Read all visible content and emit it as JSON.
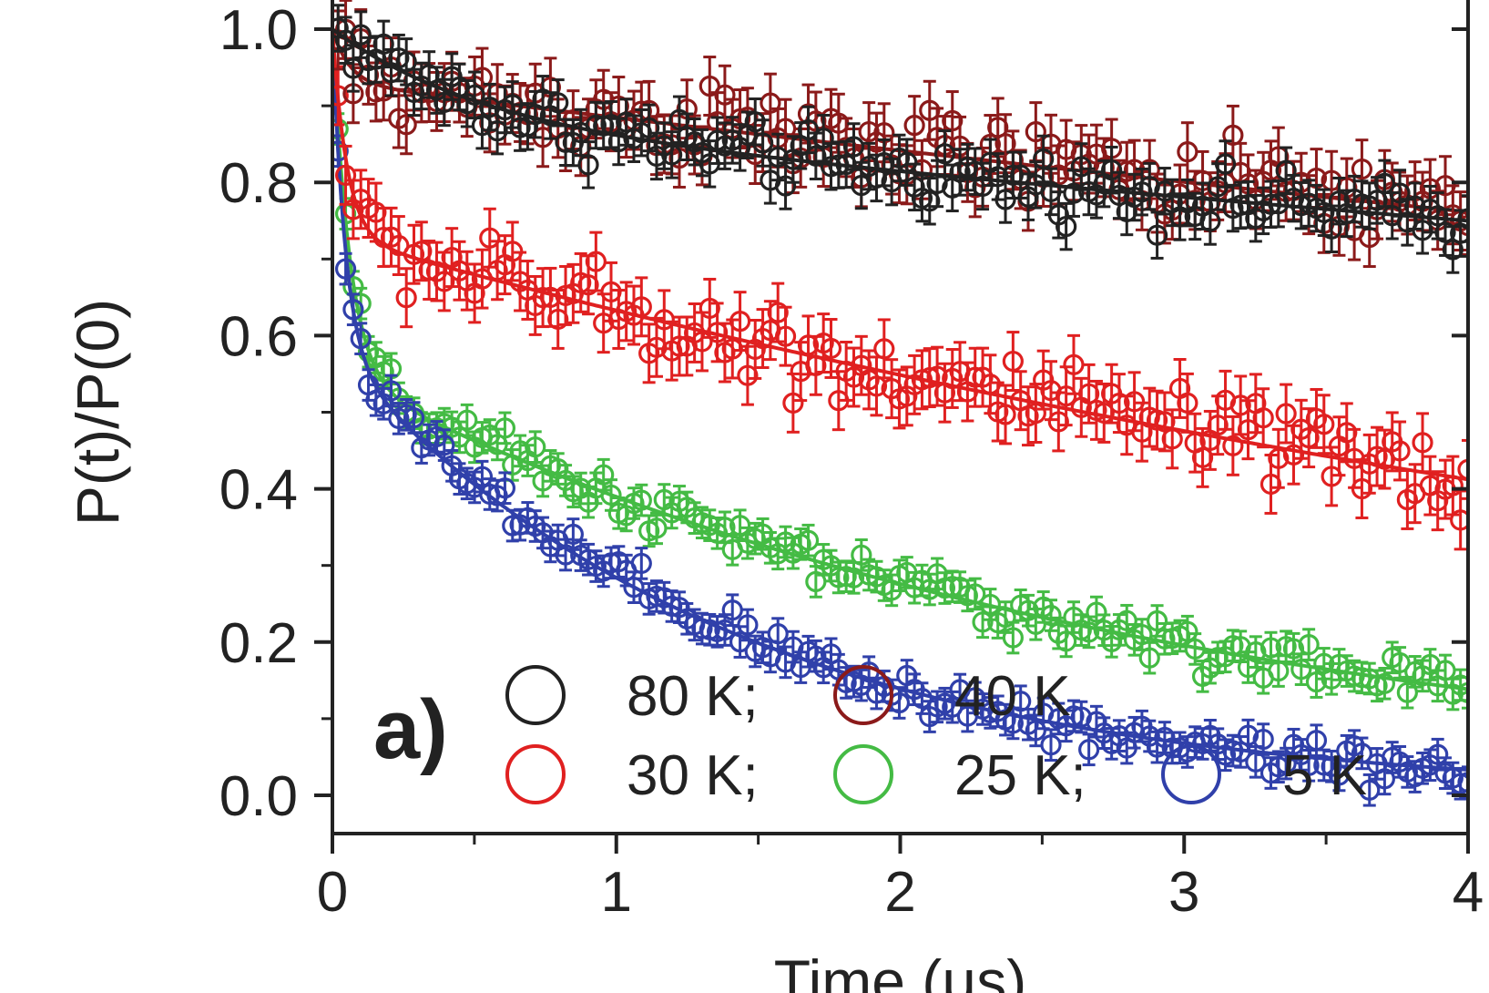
{
  "chart_data": {
    "type": "scatter",
    "panel_label": "a)",
    "xlabel": "Time (μs)",
    "ylabel": "P(t)/P(0)",
    "xlim": [
      0,
      4
    ],
    "ylim": [
      -0.05,
      1.05
    ],
    "xticks": [
      0,
      1,
      2,
      3,
      4
    ],
    "xtick_labels": [
      "0",
      "1",
      "2",
      "3",
      "4"
    ],
    "yticks": [
      0.0,
      0.2,
      0.4,
      0.6,
      0.8,
      1.0
    ],
    "ytick_labels": [
      "0.0",
      "0.2",
      "0.4",
      "0.6",
      "0.8",
      "1.0"
    ],
    "grid": false,
    "legend_placement": "bottom",
    "series": [
      {
        "name": "80 K;",
        "color": "#222222",
        "fit": {
          "a": 0.12,
          "tau": 0.5,
          "b": 0.88,
          "tau2": 25
        },
        "noise": 0.03,
        "err": 0.03
      },
      {
        "name": "40 K",
        "color": "#8b1a1a",
        "fit": {
          "a": 0.07,
          "tau": 0.06,
          "b": 0.93,
          "tau2": 20
        },
        "noise": 0.04,
        "err": 0.038
      },
      {
        "name": "30 K;",
        "color": "#e02020",
        "fit": {
          "a": 0.27,
          "tau": 0.05,
          "b": 0.73,
          "tau2": 7
        },
        "noise": 0.04,
        "err": 0.038
      },
      {
        "name": "25 K;",
        "color": "#44bb44",
        "fit": {
          "a": 0.45,
          "tau": 0.06,
          "b": 0.55,
          "tau2": 2.9
        },
        "noise": 0.022,
        "err": 0.02
      },
      {
        "name": "5 K",
        "color": "#3040aa",
        "fit": {
          "a": 0.42,
          "tau": 0.045,
          "b": 0.58,
          "tau2": 1.4
        },
        "noise": 0.022,
        "err": 0.02
      }
    ]
  }
}
